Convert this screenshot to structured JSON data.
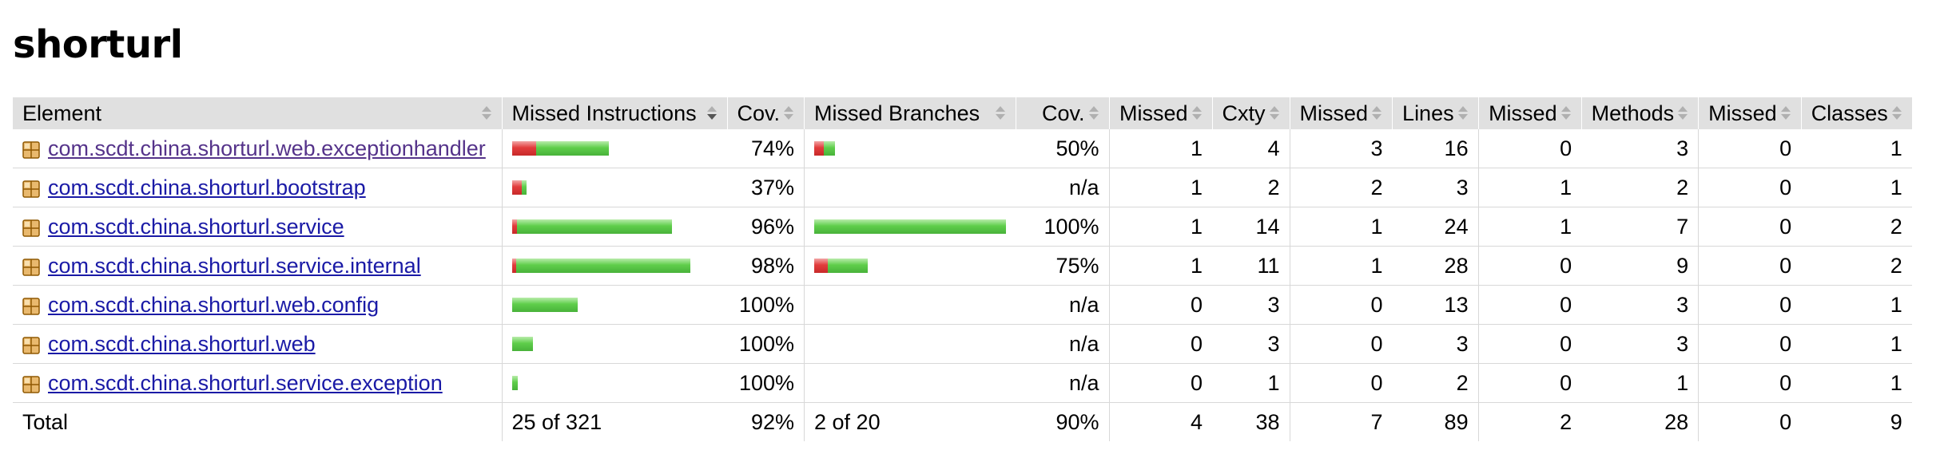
{
  "page": {
    "title": "shorturl"
  },
  "table": {
    "headers": {
      "element": "Element",
      "missed_instructions": "Missed Instructions",
      "cov_instructions": "Cov.",
      "missed_branches": "Missed Branches",
      "cov_branches": "Cov.",
      "missed_cxty": "Missed",
      "cxty": "Cxty",
      "missed_lines": "Missed",
      "lines": "Lines",
      "missed_methods": "Missed",
      "methods": "Methods",
      "missed_classes": "Missed",
      "classes": "Classes"
    },
    "rows": [
      {
        "name": "com.scdt.china.shorturl.web.exceptionhandler",
        "visited": true,
        "instr_bar": {
          "missed": 0.127,
          "covered": 0.378
        },
        "instr_cov": "74%",
        "branch_bar": {
          "missed": 0.05,
          "covered": 0.06
        },
        "branch_cov": "50%",
        "missed_cxty": "1",
        "cxty": "4",
        "missed_lines": "3",
        "lines": "16",
        "missed_methods": "0",
        "methods": "3",
        "missed_classes": "0",
        "classes": "1"
      },
      {
        "name": "com.scdt.china.shorturl.bootstrap",
        "visited": false,
        "instr_bar": {
          "missed": 0.05,
          "covered": 0.025
        },
        "instr_cov": "37%",
        "branch_bar": {
          "missed": 0,
          "covered": 0
        },
        "branch_cov": "n/a",
        "missed_cxty": "1",
        "cxty": "2",
        "missed_lines": "2",
        "lines": "3",
        "missed_methods": "1",
        "methods": "2",
        "missed_classes": "0",
        "classes": "1"
      },
      {
        "name": "com.scdt.china.shorturl.service",
        "visited": false,
        "instr_bar": {
          "missed": 0.025,
          "covered": 0.81
        },
        "instr_cov": "96%",
        "branch_bar": {
          "missed": 0,
          "covered": 1.0
        },
        "branch_cov": "100%",
        "missed_cxty": "1",
        "cxty": "14",
        "missed_lines": "1",
        "lines": "24",
        "missed_methods": "1",
        "methods": "7",
        "missed_classes": "0",
        "classes": "2"
      },
      {
        "name": "com.scdt.china.shorturl.service.internal",
        "visited": false,
        "instr_bar": {
          "missed": 0.02,
          "covered": 0.91
        },
        "instr_cov": "98%",
        "branch_bar": {
          "missed": 0.07,
          "covered": 0.21
        },
        "branch_cov": "75%",
        "missed_cxty": "1",
        "cxty": "11",
        "missed_lines": "1",
        "lines": "28",
        "missed_methods": "0",
        "methods": "9",
        "missed_classes": "0",
        "classes": "2"
      },
      {
        "name": "com.scdt.china.shorturl.web.config",
        "visited": false,
        "instr_bar": {
          "missed": 0,
          "covered": 0.34
        },
        "instr_cov": "100%",
        "branch_bar": {
          "missed": 0,
          "covered": 0
        },
        "branch_cov": "n/a",
        "missed_cxty": "0",
        "cxty": "3",
        "missed_lines": "0",
        "lines": "13",
        "missed_methods": "0",
        "methods": "3",
        "missed_classes": "0",
        "classes": "1"
      },
      {
        "name": "com.scdt.china.shorturl.web",
        "visited": false,
        "instr_bar": {
          "missed": 0,
          "covered": 0.11
        },
        "instr_cov": "100%",
        "branch_bar": {
          "missed": 0,
          "covered": 0
        },
        "branch_cov": "n/a",
        "missed_cxty": "0",
        "cxty": "3",
        "missed_lines": "0",
        "lines": "3",
        "missed_methods": "0",
        "methods": "3",
        "missed_classes": "0",
        "classes": "1"
      },
      {
        "name": "com.scdt.china.shorturl.service.exception",
        "visited": false,
        "instr_bar": {
          "missed": 0,
          "covered": 0.03
        },
        "instr_cov": "100%",
        "branch_bar": {
          "missed": 0,
          "covered": 0
        },
        "branch_cov": "n/a",
        "missed_cxty": "0",
        "cxty": "1",
        "missed_lines": "0",
        "lines": "2",
        "missed_methods": "0",
        "methods": "1",
        "missed_classes": "0",
        "classes": "1"
      }
    ],
    "total": {
      "label": "Total",
      "instr": "25 of 321",
      "instr_cov": "92%",
      "branch": "2 of 20",
      "branch_cov": "90%",
      "missed_cxty": "4",
      "cxty": "38",
      "missed_lines": "7",
      "lines": "89",
      "missed_methods": "2",
      "methods": "28",
      "missed_classes": "0",
      "classes": "9"
    }
  },
  "colors": {
    "missed": "#e23c3c",
    "covered": "#5fce4b",
    "header_bg": "#e0e0e0",
    "link": "#1a1aa6",
    "visited": "#55338a"
  },
  "icons": {
    "package": "package-icon",
    "sort": "sort-icon"
  }
}
